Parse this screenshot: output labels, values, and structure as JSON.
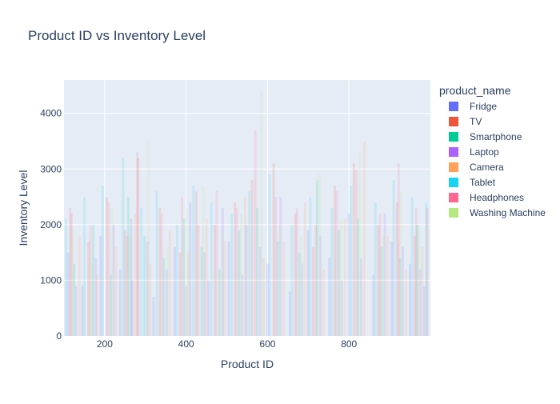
{
  "chart_data": {
    "type": "bar",
    "title": "Product ID vs Inventory Level",
    "xlabel": "Product ID",
    "ylabel": "Inventory Level",
    "xlim": [
      100,
      1000
    ],
    "ylim": [
      0,
      4600
    ],
    "x_ticks": [
      200,
      400,
      600,
      800
    ],
    "y_ticks": [
      0,
      1000,
      2000,
      3000,
      4000
    ],
    "grid": true,
    "plot_background": "#e5ecf6",
    "bar_opacity": 0.15,
    "legend": {
      "title": "product_name",
      "placement": "right"
    },
    "series": [
      {
        "name": "Fridge",
        "color": "#636efa",
        "x": [
          110,
          145,
          190,
          238,
          265,
          320,
          372,
          410,
          455,
          505,
          548,
          600,
          655,
          700,
          752,
          800,
          860,
          905,
          950,
          985
        ],
        "values": [
          1500,
          900,
          1800,
          1200,
          2100,
          700,
          1600,
          2400,
          1000,
          1700,
          2000,
          1300,
          800,
          1900,
          1400,
          2200,
          1100,
          1700,
          1300,
          900
        ]
      },
      {
        "name": "TV",
        "color": "#ef553b",
        "x": [
          118,
          160,
          205,
          250,
          282,
          335,
          385,
          425,
          470,
          520,
          562,
          615,
          668,
          712,
          765,
          812,
          872,
          918,
          962,
          992
        ],
        "values": [
          2200,
          1700,
          2500,
          1900,
          3200,
          2300,
          1500,
          2600,
          2000,
          2400,
          2800,
          3100,
          2200,
          1600,
          2700,
          3100,
          2000,
          2400,
          1800,
          2300
        ]
      },
      {
        "name": "Smartphone",
        "color": "#00cc96",
        "x": [
          125,
          172,
          215,
          258,
          298,
          345,
          395,
          438,
          482,
          530,
          575,
          625,
          678,
          722,
          775,
          822,
          880,
          925,
          968
        ],
        "values": [
          1300,
          2000,
          1100,
          2500,
          1800,
          1400,
          2100,
          1600,
          1200,
          1900,
          2300,
          1700,
          1500,
          2800,
          1900,
          2100,
          1600,
          1400,
          2000
        ]
      },
      {
        "name": "Laptop",
        "color": "#ab63fa",
        "x": [
          130,
          178,
          222,
          268,
          305,
          352,
          400,
          445,
          490,
          538,
          582,
          632,
          685,
          730,
          782,
          830,
          888,
          932,
          975
        ],
        "values": [
          900,
          1400,
          2000,
          1000,
          1700,
          1200,
          900,
          1500,
          2300,
          1100,
          1600,
          2500,
          1300,
          1800,
          1000,
          1400,
          2200,
          1600,
          1200
        ]
      },
      {
        "name": "Camera",
        "color": "#ffa15a",
        "x": [
          138,
          182,
          228,
          275,
          312,
          360,
          405,
          450,
          495,
          545,
          590,
          640,
          692,
          738,
          790,
          838,
          895,
          940,
          980
        ],
        "values": [
          1800,
          1100,
          1600,
          2200,
          1300,
          1900,
          1500,
          2100,
          1700,
          2500,
          1400,
          1700,
          2400,
          1200,
          2100,
          3500,
          1800,
          1200,
          1600
        ]
      },
      {
        "name": "Tablet",
        "color": "#19d3f3",
        "x": [
          105,
          150,
          195,
          245,
          290,
          328,
          378,
          418,
          462,
          512,
          555,
          605,
          660,
          705,
          758,
          805,
          865,
          910,
          955,
          990
        ],
        "values": [
          2100,
          2500,
          2700,
          3200,
          2300,
          2600,
          2000,
          2700,
          2400,
          2200,
          2600,
          2900,
          2000,
          2500,
          2300,
          2700,
          2400,
          2800,
          2500,
          2400
        ]
      },
      {
        "name": "Headphones",
        "color": "#ff6692",
        "x": [
          115,
          165,
          210,
          255,
          280,
          340,
          390,
          430,
          475,
          525,
          570,
          620,
          672,
          718,
          770,
          818,
          876,
          922,
          965
        ],
        "values": [
          2300,
          2000,
          2400,
          1800,
          3300,
          2200,
          2500,
          2000,
          2600,
          2300,
          3700,
          2500,
          2300,
          2000,
          2600,
          3000,
          2200,
          3100,
          2300
        ]
      },
      {
        "name": "Washing Machine",
        "color": "#b6e880",
        "x": [
          122,
          168,
          218,
          262,
          308,
          355,
          402,
          442,
          488,
          535,
          585,
          628,
          682,
          728,
          780,
          826,
          885,
          928,
          972
        ],
        "values": [
          1900,
          1400,
          2300,
          1800,
          3500,
          1600,
          2300,
          2700,
          1900,
          2200,
          4400,
          2000,
          1800,
          2900,
          2100,
          3300,
          1800,
          2600,
          2000
        ]
      }
    ]
  }
}
